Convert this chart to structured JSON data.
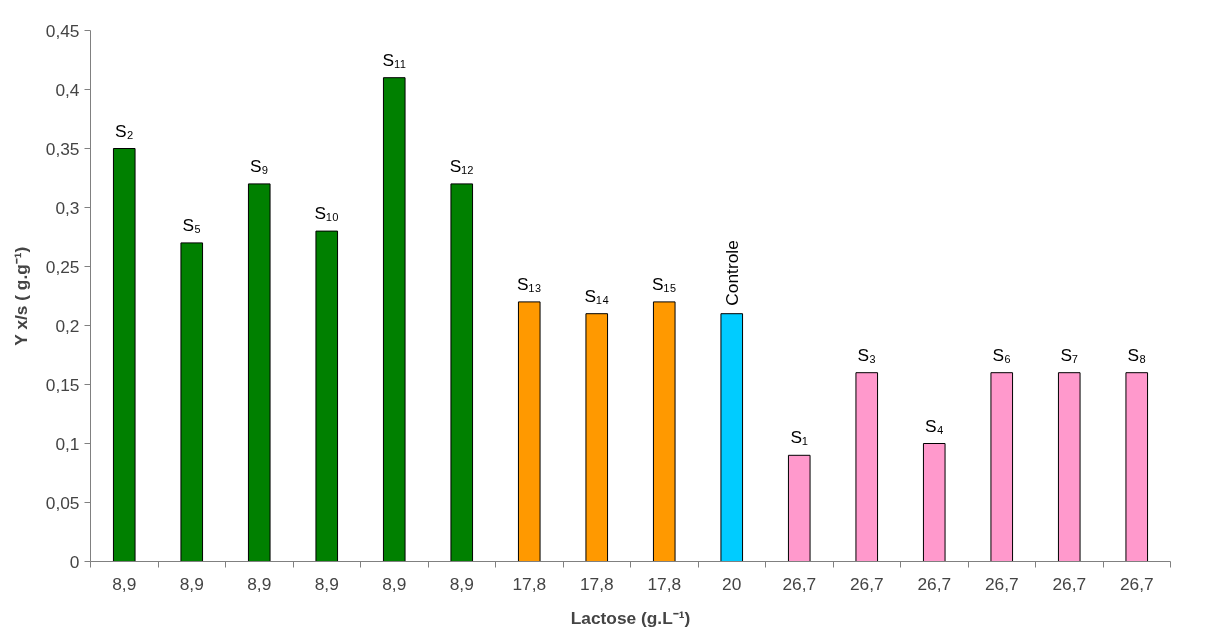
{
  "chart_data": {
    "type": "bar",
    "xlabel": "Lactose (g.L⁻¹)",
    "ylabel": "Y x/s ( g.g⁻¹)",
    "categories": [
      "8,9",
      "8,9",
      "8,9",
      "8,9",
      "8,9",
      "8,9",
      "17,8",
      "17,8",
      "17,8",
      "20",
      "26,7",
      "26,7",
      "26,7",
      "26,7",
      "26,7",
      "26,7"
    ],
    "values": [
      0.35,
      0.27,
      0.32,
      0.28,
      0.41,
      0.32,
      0.22,
      0.21,
      0.22,
      0.21,
      0.09,
      0.16,
      0.1,
      0.16,
      0.16,
      0.16
    ],
    "colors": [
      "#008000",
      "#008000",
      "#008000",
      "#008000",
      "#008000",
      "#008000",
      "#ff9900",
      "#ff9900",
      "#ff9900",
      "#00ccff",
      "#ff99cc",
      "#ff99cc",
      "#ff99cc",
      "#ff99cc",
      "#ff99cc",
      "#ff99cc"
    ],
    "value_labels": [
      "S₂",
      "S₅",
      "S₉",
      "S₁₀",
      "S₁₁",
      "S₁₂",
      "S₁₃",
      "S₁₄",
      "S₁₅",
      "Controle",
      "S₁",
      "S₃",
      "S₄",
      "S₆",
      "S₇",
      "S₈"
    ],
    "ylim": [
      0,
      0.45
    ],
    "yticks": [
      {
        "value": 0,
        "label": "0"
      },
      {
        "value": 0.05,
        "label": "0,05"
      },
      {
        "value": 0.1,
        "label": "0,1"
      },
      {
        "value": 0.15,
        "label": "0,15"
      },
      {
        "value": 0.2,
        "label": "0,2"
      },
      {
        "value": 0.25,
        "label": "0,25"
      },
      {
        "value": 0.3,
        "label": "0,3"
      },
      {
        "value": 0.35,
        "label": "0,35"
      },
      {
        "value": 0.4,
        "label": "0,4"
      },
      {
        "value": 0.45,
        "label": "0,45"
      }
    ],
    "grid": false
  }
}
